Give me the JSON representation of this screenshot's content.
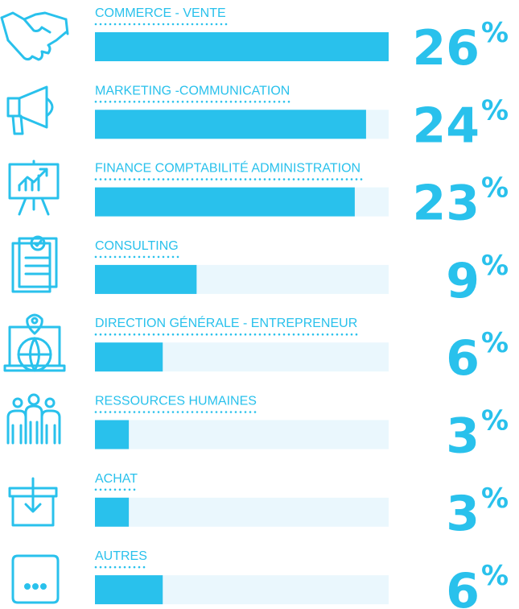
{
  "chart_data": {
    "type": "bar",
    "categories": [
      "COMMERCE - VENTE",
      "MARKETING -COMMUNICATION",
      "FINANCE COMPTABILITÉ ADMINISTRATION",
      "CONSULTING",
      "DIRECTION GÉNÉRALE - ENTREPRENEUR",
      "RESSOURCES HUMAINES",
      "ACHAT",
      "AUTRES"
    ],
    "values": [
      26,
      24,
      23,
      9,
      6,
      3,
      3,
      6
    ],
    "unit": "%",
    "xlim": [
      0,
      26
    ],
    "color": "#29c1ec",
    "track_color": "#eaf7fd"
  }
}
